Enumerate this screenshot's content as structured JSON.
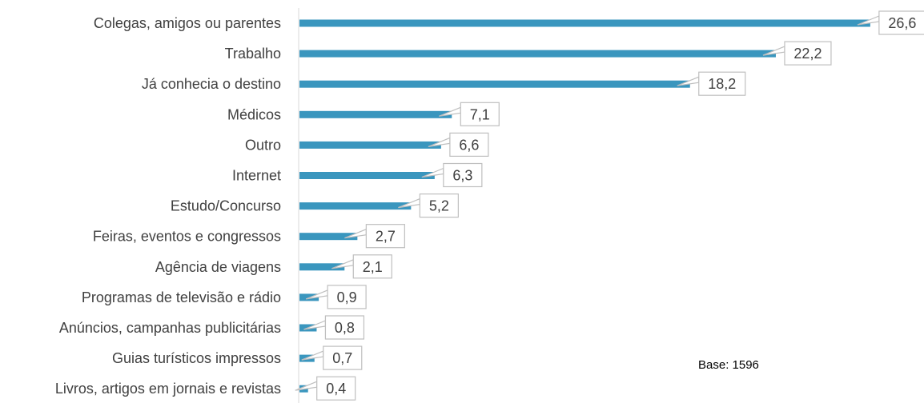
{
  "chart_data": {
    "type": "bar",
    "orientation": "horizontal",
    "categories": [
      "Colegas, amigos ou parentes",
      "Trabalho",
      "Já conhecia o destino",
      "Médicos",
      "Outro",
      "Internet",
      "Estudo/Concurso",
      "Feiras, eventos e congressos",
      "Agência de viagens",
      "Programas de televisão e rádio",
      "Anúncios, campanhas publicitárias",
      "Guias turísticos impressos",
      "Livros, artigos em jornais e revistas"
    ],
    "values": [
      26.6,
      22.2,
      18.2,
      7.1,
      6.6,
      6.3,
      5.2,
      2.7,
      2.1,
      0.9,
      0.8,
      0.7,
      0.4
    ],
    "value_labels": [
      "26,6",
      "22,2",
      "18,2",
      "7,1",
      "6,6",
      "6,3",
      "5,2",
      "2,7",
      "2,1",
      "0,9",
      "0,8",
      "0,7",
      "0,4"
    ],
    "bar_color": "#3a96be",
    "callout_border_color": "#bfbfbf",
    "text_color": "#404040",
    "grid": false,
    "legend": "none"
  },
  "note": "Base: 1596"
}
